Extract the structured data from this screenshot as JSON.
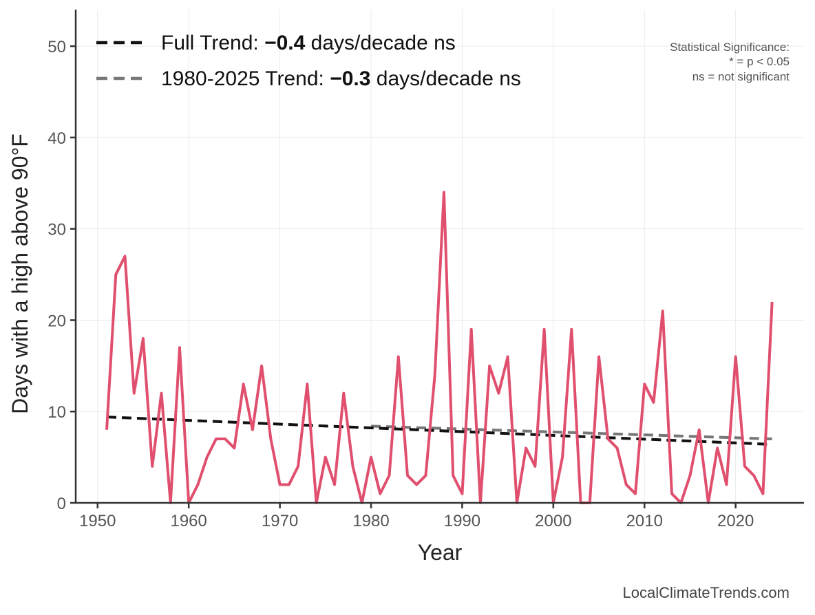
{
  "chart_data": {
    "type": "line",
    "title": "",
    "xlabel": "Year",
    "ylabel": "Days with a high above 90°F",
    "xlim": [
      1947.6,
      2027.5
    ],
    "ylim": [
      0,
      54
    ],
    "xticks": [
      1950,
      1960,
      1970,
      1980,
      1990,
      2000,
      2010,
      2020
    ],
    "yticks": [
      0,
      10,
      20,
      30,
      40,
      50
    ],
    "grid": true,
    "legend_placement": "top-left",
    "colors": {
      "series": "#e0506e",
      "full_trend": "#111111",
      "recent_trend": "#777777",
      "axis": "#333333",
      "grid": "#ebebeb"
    },
    "x": [
      1951,
      1952,
      1953,
      1954,
      1955,
      1956,
      1957,
      1958,
      1959,
      1960,
      1961,
      1962,
      1963,
      1964,
      1965,
      1966,
      1967,
      1968,
      1969,
      1970,
      1971,
      1972,
      1973,
      1974,
      1975,
      1976,
      1977,
      1978,
      1979,
      1980,
      1981,
      1982,
      1983,
      1984,
      1985,
      1986,
      1987,
      1988,
      1989,
      1990,
      1991,
      1992,
      1993,
      1994,
      1995,
      1996,
      1997,
      1998,
      1999,
      2000,
      2001,
      2002,
      2003,
      2004,
      2005,
      2006,
      2007,
      2008,
      2009,
      2010,
      2011,
      2012,
      2013,
      2014,
      2015,
      2016,
      2017,
      2018,
      2019,
      2020,
      2021,
      2022,
      2023,
      2024
    ],
    "values": [
      8,
      25,
      27,
      12,
      18,
      4,
      12,
      0,
      17,
      0,
      2,
      5,
      7,
      7,
      6,
      13,
      8,
      15,
      7,
      2,
      2,
      4,
      13,
      0,
      5,
      2,
      12,
      4,
      0,
      5,
      1,
      3,
      16,
      3,
      2,
      3,
      14,
      34,
      3,
      1,
      19,
      0,
      15,
      12,
      16,
      0,
      6,
      4,
      19,
      0,
      5,
      19,
      0,
      0,
      16,
      7,
      6,
      2,
      1,
      13,
      11,
      21,
      1,
      0,
      3,
      8,
      0,
      6,
      2,
      16,
      4,
      3,
      1,
      22
    ],
    "trends": [
      {
        "key": "full",
        "x": [
          1951,
          2024
        ],
        "y": [
          9.4,
          6.4
        ],
        "legend_prefix": "Full Trend: ",
        "legend_value": "−0.4",
        "legend_suffix": " days/decade ns"
      },
      {
        "key": "recent",
        "x": [
          1980,
          2024
        ],
        "y": [
          8.4,
          7.0
        ],
        "legend_prefix": "1980-2025 Trend: ",
        "legend_value": "−0.3",
        "legend_suffix": " days/decade ns"
      }
    ],
    "annotation": [
      "Statistical Significance:",
      "* = p < 0.05",
      "ns = not significant"
    ],
    "credit": "LocalClimateTrends.com"
  }
}
